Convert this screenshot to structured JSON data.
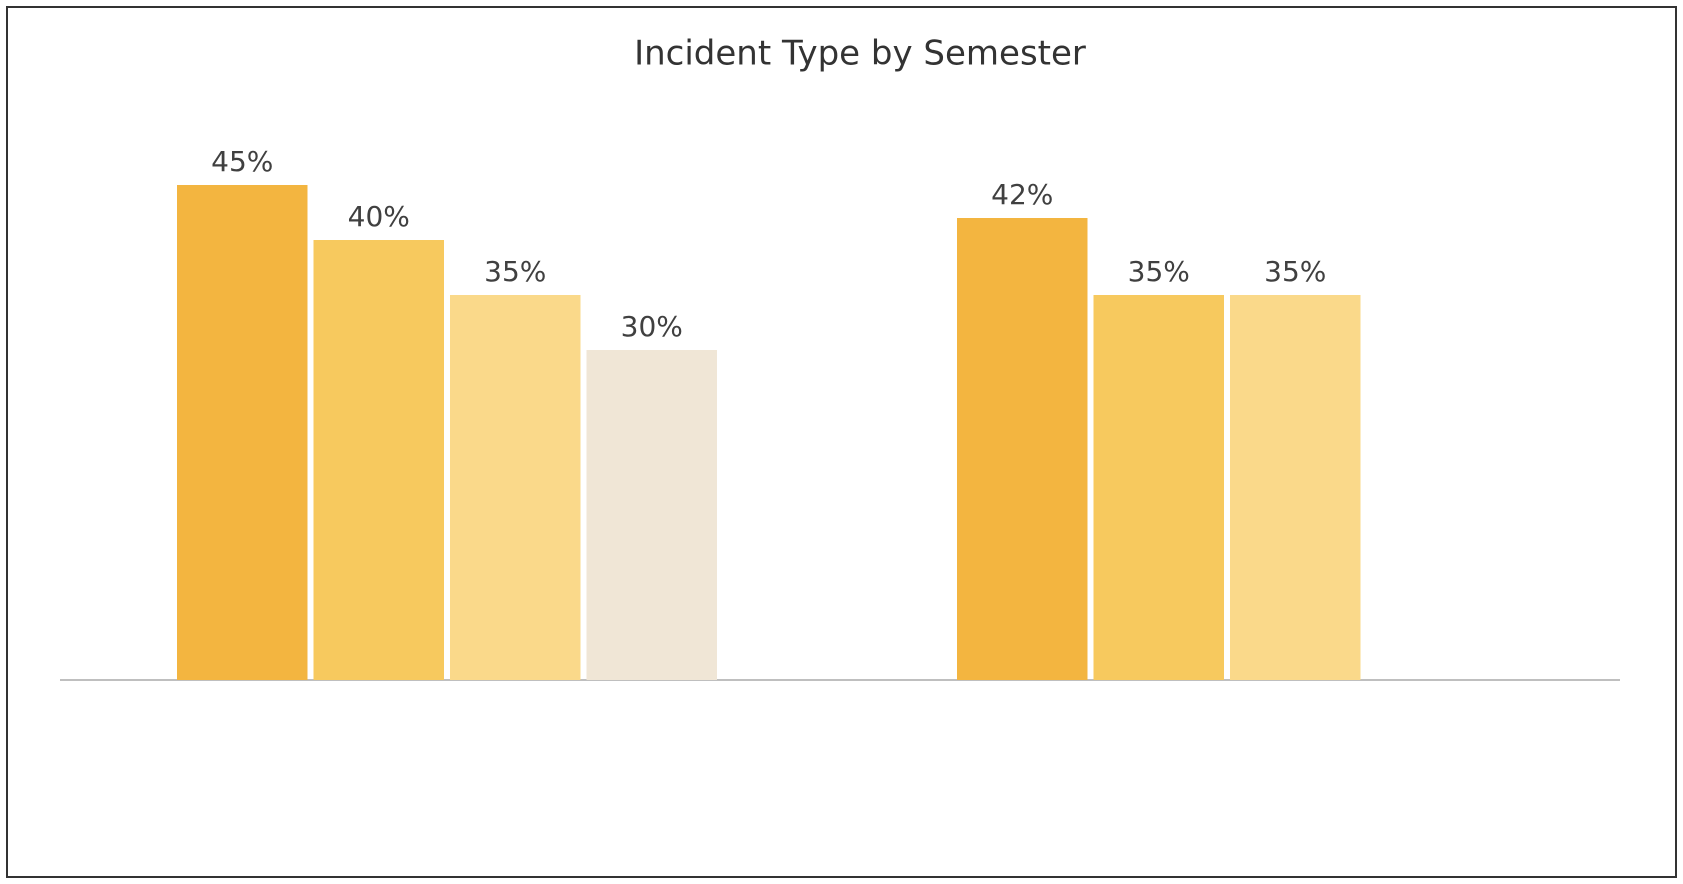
{
  "chart_data": {
    "type": "bar",
    "title": "Incident Type by Semester",
    "categories": [
      null,
      null
    ],
    "series": [
      {
        "color": "#f3b540",
        "values": [
          45,
          42
        ],
        "value_labels": [
          "45%",
          "42%"
        ]
      },
      {
        "color": "#f7c95e",
        "values": [
          40,
          35
        ],
        "value_labels": [
          "40%",
          "35%"
        ]
      },
      {
        "color": "#fad98a",
        "values": [
          35,
          35
        ],
        "value_labels": [
          "35%",
          "35%"
        ]
      },
      {
        "color": "#f0e6d6",
        "values": [
          30,
          null
        ],
        "value_labels": [
          "30%",
          null
        ]
      }
    ]
  }
}
